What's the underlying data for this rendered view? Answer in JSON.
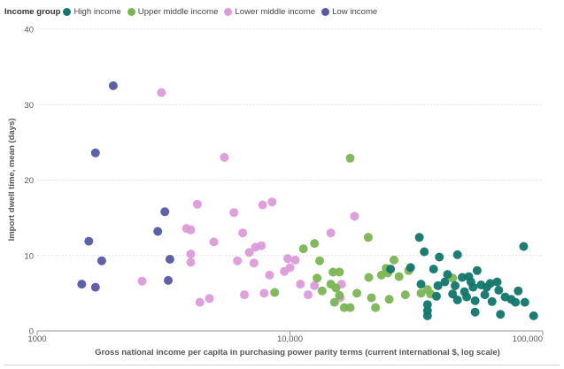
{
  "colors": {
    "high": "#12766a",
    "upper_middle": "#7ab553",
    "lower_middle": "#dd9ad8",
    "low": "#5558a5"
  },
  "legend": {
    "title": "Income group",
    "items": [
      {
        "key": "high",
        "label": "High income"
      },
      {
        "key": "upper_middle",
        "label": "Upper middle income"
      },
      {
        "key": "lower_middle",
        "label": "Lower middle income"
      },
      {
        "key": "low",
        "label": "Low income"
      }
    ]
  },
  "chart_data": {
    "type": "scatter",
    "title": "",
    "xlabel": "Gross national income per capita in purchasing power parity terms (current international $, log scale)",
    "ylabel": "Import dwell time, mean (days)",
    "x_scale": "log",
    "xlim": [
      1000,
      100000
    ],
    "ylim": [
      0,
      40
    ],
    "x_ticks": [
      1000,
      10000,
      100000
    ],
    "x_tick_labels": [
      "1000",
      "10,000",
      "100,000"
    ],
    "y_ticks": [
      0,
      10,
      20,
      30,
      40
    ],
    "y_tick_labels": [
      "0",
      "10",
      "20",
      "30",
      "40"
    ],
    "grid": true,
    "legend_position": "top-left",
    "series": [
      {
        "name": "Low income",
        "key": "low",
        "points": [
          [
            2000,
            32.5
          ],
          [
            1700,
            23.6
          ],
          [
            3200,
            15.8
          ],
          [
            1600,
            11.9
          ],
          [
            3000,
            13.2
          ],
          [
            1800,
            9.3
          ],
          [
            3350,
            9.5
          ],
          [
            1500,
            6.2
          ],
          [
            1700,
            5.8
          ],
          [
            3300,
            6.7
          ]
        ]
      },
      {
        "name": "Lower middle income",
        "key": "lower_middle",
        "points": [
          [
            3100,
            31.6
          ],
          [
            5500,
            23.0
          ],
          [
            4300,
            16.8
          ],
          [
            8500,
            17.1
          ],
          [
            7800,
            16.7
          ],
          [
            6000,
            15.7
          ],
          [
            18000,
            15.2
          ],
          [
            14500,
            13.0
          ],
          [
            3900,
            13.6
          ],
          [
            4050,
            13.4
          ],
          [
            6500,
            13.0
          ],
          [
            5000,
            11.8
          ],
          [
            7300,
            11.1
          ],
          [
            7700,
            11.3
          ],
          [
            6900,
            10.4
          ],
          [
            4050,
            10.2
          ],
          [
            6200,
            9.3
          ],
          [
            9800,
            9.6
          ],
          [
            4050,
            9.1
          ],
          [
            7200,
            9.0
          ],
          [
            10500,
            9.4
          ],
          [
            9500,
            7.9
          ],
          [
            10000,
            8.4
          ],
          [
            8300,
            7.4
          ],
          [
            2600,
            6.6
          ],
          [
            11000,
            6.2
          ],
          [
            16000,
            6.2
          ],
          [
            4800,
            4.3
          ],
          [
            4400,
            3.8
          ],
          [
            6600,
            4.8
          ],
          [
            7900,
            5.0
          ],
          [
            11800,
            4.8
          ],
          [
            12500,
            6.0
          ],
          [
            15800,
            4.4
          ]
        ]
      },
      {
        "name": "Upper middle income",
        "key": "upper_middle",
        "points": [
          [
            17300,
            22.9
          ],
          [
            12500,
            11.6
          ],
          [
            20400,
            12.4
          ],
          [
            11300,
            10.9
          ],
          [
            13100,
            9.3
          ],
          [
            14800,
            7.8
          ],
          [
            15700,
            7.8
          ],
          [
            12800,
            7.0
          ],
          [
            20500,
            7.1
          ],
          [
            23000,
            7.4
          ],
          [
            25800,
            9.4
          ],
          [
            27000,
            7.2
          ],
          [
            24400,
            7.7
          ],
          [
            24000,
            8.3
          ],
          [
            21000,
            4.4
          ],
          [
            18400,
            5.0
          ],
          [
            15700,
            4.7
          ],
          [
            15000,
            3.8
          ],
          [
            16400,
            3.1
          ],
          [
            17300,
            3.1
          ],
          [
            21800,
            3.1
          ],
          [
            24700,
            4.2
          ],
          [
            14500,
            6.2
          ],
          [
            29500,
            8.0
          ],
          [
            35000,
            5.5
          ],
          [
            44000,
            7.0
          ],
          [
            8700,
            5.1
          ],
          [
            13400,
            5.3
          ],
          [
            15200,
            5.7
          ],
          [
            28600,
            4.8
          ],
          [
            36000,
            4.9
          ],
          [
            33000,
            5.0
          ]
        ]
      },
      {
        "name": "High income",
        "key": "high",
        "points": [
          [
            32500,
            12.4
          ],
          [
            34000,
            10.5
          ],
          [
            39000,
            9.8
          ],
          [
            46000,
            10.1
          ],
          [
            84000,
            11.2
          ],
          [
            25000,
            8.2
          ],
          [
            30000,
            8.4
          ],
          [
            37000,
            8.2
          ],
          [
            42000,
            7.5
          ],
          [
            55000,
            8.0
          ],
          [
            48000,
            7.1
          ],
          [
            51000,
            7.2
          ],
          [
            33000,
            6.2
          ],
          [
            38500,
            6.0
          ],
          [
            41000,
            6.5
          ],
          [
            45000,
            6.0
          ],
          [
            49000,
            5.2
          ],
          [
            53000,
            5.8
          ],
          [
            57000,
            6.1
          ],
          [
            62000,
            6.3
          ],
          [
            67000,
            5.4
          ],
          [
            71000,
            4.5
          ],
          [
            75000,
            4.2
          ],
          [
            80000,
            5.3
          ],
          [
            85000,
            3.8
          ],
          [
            46000,
            4.1
          ],
          [
            50000,
            4.5
          ],
          [
            54000,
            4.0
          ],
          [
            59000,
            4.8
          ],
          [
            63000,
            3.9
          ],
          [
            35000,
            3.5
          ],
          [
            35000,
            2.7
          ],
          [
            35000,
            2.0
          ],
          [
            54000,
            2.5
          ],
          [
            68000,
            2.2
          ],
          [
            92000,
            2.0
          ],
          [
            44000,
            4.9
          ],
          [
            78000,
            3.8
          ],
          [
            60000,
            5.8
          ],
          [
            38000,
            4.6
          ],
          [
            52000,
            6.5
          ],
          [
            66000,
            6.5
          ]
        ]
      }
    ]
  }
}
